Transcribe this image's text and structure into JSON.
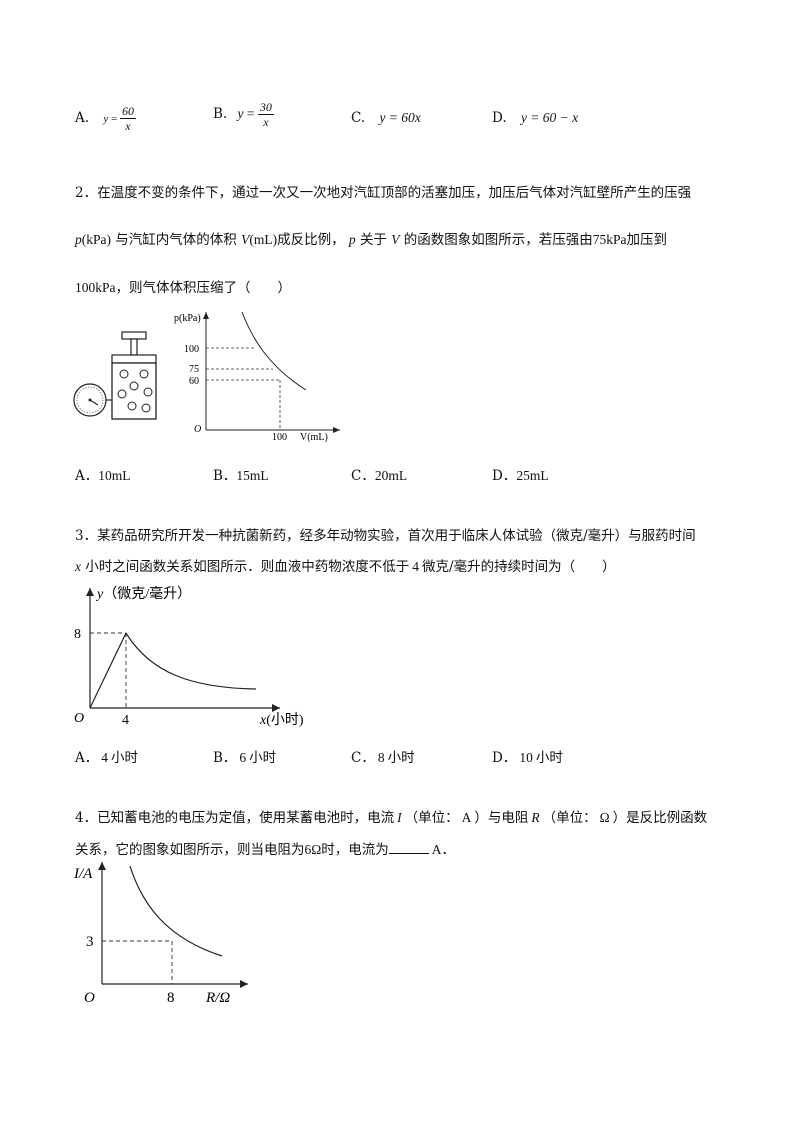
{
  "q1": {
    "options": [
      {
        "letter": "A.",
        "lhs": "y",
        "op": "=",
        "num": "60",
        "den": "x"
      },
      {
        "letter": "B.",
        "lhs": "y",
        "op": "=",
        "num": "30",
        "den": "x"
      },
      {
        "letter": "C.",
        "expr": "y = 60x"
      },
      {
        "letter": "D.",
        "expr": "y = 60 − x"
      }
    ]
  },
  "q2": {
    "line1": "2．在温度不变的条件下，通过一次又一次地对汽缸顶部的活塞加压，加压后气体对汽缸壁所产生的压强",
    "l2_p": "p",
    "l2_kpa": "(kPa)",
    "l2_a": "与汽缸内气体的体积",
    "l2_v": "V",
    "l2_ml": "(mL)",
    "l2_b": "成反比例，",
    "l2_p2": "p",
    "l2_c": "关于",
    "l2_v2": "V",
    "l2_d": "的函数图象如图所示，若压强由",
    "l2_75": "75kPa",
    "l2_e": "加压到",
    "l3_100": "100kPa",
    "l3_rest": "，则气体体积压缩了（　　）",
    "graph": {
      "y_axis_label": "p(kPa)",
      "x_axis_label": "V(mL)",
      "origin": "O",
      "y_ticks": [
        "100",
        "75",
        "60"
      ],
      "x_ticks": [
        "100"
      ]
    },
    "options": [
      {
        "letter": "A．",
        "value": "10mL"
      },
      {
        "letter": "B．",
        "value": "15mL"
      },
      {
        "letter": "C．",
        "value": "20mL"
      },
      {
        "letter": "D．",
        "value": "25mL"
      }
    ]
  },
  "q3": {
    "line1": "3．某药品研究所开发一种抗菌新药，经多年动物实验，首次用于临床人体试验（微克/毫升）与服药时间",
    "l2_x": "x",
    "l2_a": "小时之间函数关系如图所示．则血液中药物浓度不低于",
    "l2_4": "4",
    "l2_b": "微克/毫升的持续时间为（　　）",
    "graph": {
      "y_axis_label": "y（微克/毫升）",
      "x_axis_label_var": "x",
      "x_axis_label_unit": "(小时)",
      "origin": "O",
      "y_tick": "8",
      "x_tick": "4"
    },
    "options": [
      {
        "letter": "A．",
        "value": "4",
        "unit": "小时"
      },
      {
        "letter": "B．",
        "value": "6",
        "unit": "小时"
      },
      {
        "letter": "C．",
        "value": "8",
        "unit": "小时"
      },
      {
        "letter": "D．",
        "value": "10",
        "unit": "小时"
      }
    ]
  },
  "q4": {
    "l1_a": "4．已知蓄电池的电压为定值，使用某蓄电池时，电流",
    "l1_i": "I",
    "l1_b": "（单位：",
    "l1_unitA": "A",
    "l1_c": "）与电阻",
    "l1_r": "R",
    "l1_d": "（单位：",
    "l1_ohm": "Ω",
    "l1_e": "）是反比例函数",
    "l2_a": "关系，它的图象如图所示，则当电阻为",
    "l2_6": "6Ω",
    "l2_b": "时，电流为",
    "l2_unit": "A",
    "l2_end": "．",
    "graph": {
      "y_axis_label": "I/A",
      "x_axis_label": "R/Ω",
      "origin": "O",
      "y_tick": "3",
      "x_tick": "8"
    }
  }
}
